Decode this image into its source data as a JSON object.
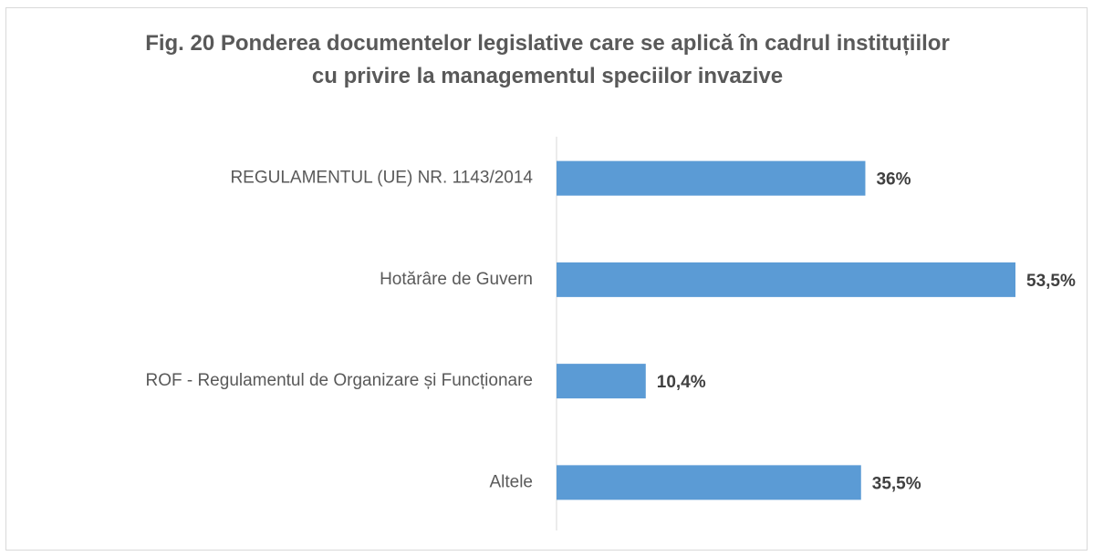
{
  "chart_data": {
    "type": "bar",
    "orientation": "horizontal",
    "title": "Fig. 20 Ponderea documentelor legislative care se aplică în cadrul instituțiilor cu privire la managementul speciilor invazive",
    "categories": [
      "REGULAMENTUL (UE) NR. 1143/2014",
      "Hotărâre de Guvern",
      "ROF - Regulamentul de Organizare și Funcționare",
      "Altele"
    ],
    "values": [
      36,
      53.5,
      10.4,
      35.5
    ],
    "value_labels": [
      "36%",
      "53,5%",
      "10,4%",
      "35,5%"
    ],
    "color": "#5b9bd5"
  }
}
